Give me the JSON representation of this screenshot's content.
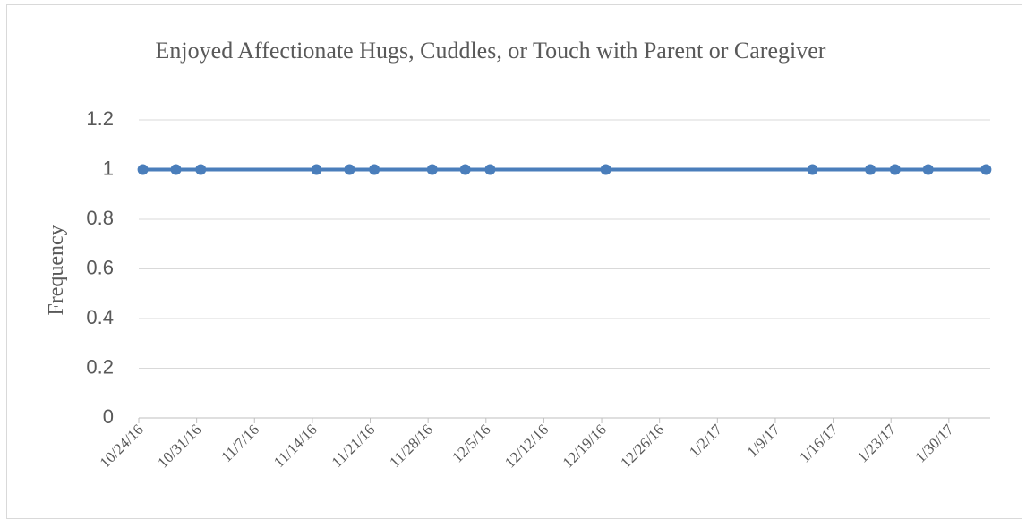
{
  "chart_data": {
    "type": "line",
    "title": "Enjoyed Affectionate Hugs, Cuddles, or Touch with Parent or Caregiver",
    "y_label": "Frequency",
    "x": [
      "10/24/16",
      "10/28/16",
      "10/31/16",
      "11/14/16",
      "11/18/16",
      "11/21/16",
      "11/28/16",
      "12/2/16",
      "12/5/16",
      "12/19/16",
      "1/13/17",
      "1/20/17",
      "1/23/17",
      "1/27/17",
      "2/3/17"
    ],
    "series": [
      {
        "name": "Frequency",
        "color": "#4a7ebb",
        "values": [
          1,
          1,
          1,
          1,
          1,
          1,
          1,
          1,
          1,
          1,
          1,
          1,
          1,
          1,
          1
        ]
      }
    ],
    "xlim": [
      "10/24/16",
      "2/4/17"
    ],
    "xticks": [
      "10/24/16",
      "10/31/16",
      "11/7/16",
      "11/14/16",
      "11/21/16",
      "11/28/16",
      "12/5/16",
      "12/12/16",
      "12/19/16",
      "12/26/16",
      "1/2/17",
      "1/9/17",
      "1/16/17",
      "1/23/17",
      "1/30/17"
    ],
    "ylim": [
      0,
      1.2
    ],
    "yticks": [
      0,
      0.2,
      0.4,
      0.6,
      0.8,
      1,
      1.2
    ],
    "grid": true
  }
}
